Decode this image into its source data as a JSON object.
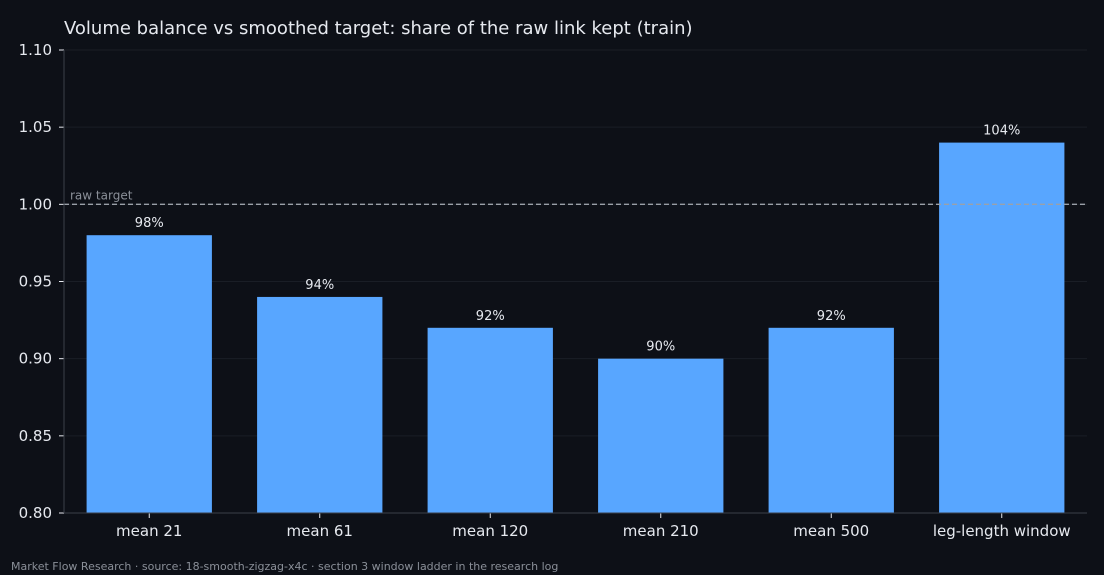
{
  "chart_data": {
    "type": "bar",
    "title": "Volume balance vs smoothed target: share of the raw link kept (train)",
    "categories": [
      "mean 21",
      "mean 61",
      "mean 120",
      "mean 210",
      "mean 500",
      "leg-length window"
    ],
    "values": [
      0.98,
      0.94,
      0.92,
      0.9,
      0.92,
      1.04
    ],
    "data_labels": [
      "98%",
      "94%",
      "92%",
      "90%",
      "92%",
      "104%"
    ],
    "xlabel": "",
    "ylabel": "",
    "ylim": [
      0.8,
      1.1
    ],
    "yticks": [
      0.8,
      0.85,
      0.9,
      0.95,
      1.0,
      1.05,
      1.1
    ],
    "ytick_labels": [
      "0.80",
      "0.85",
      "0.90",
      "0.95",
      "1.00",
      "1.05",
      "1.10"
    ],
    "grid": true,
    "reference_line": {
      "value": 1.0,
      "label": "raw target",
      "style": "dashed"
    },
    "colors": {
      "bar": "#58a6ff",
      "background": "#0d1017",
      "text": "#e6e9ef",
      "muted": "#8a8f98",
      "reference": "#9aa0a8",
      "grid": "#1a1e26",
      "axis": "#3a3f48"
    }
  },
  "footer": {
    "text": "Market Flow Research · source: 18-smooth-zigzag-x4c · section 3 window ladder in the research log"
  }
}
